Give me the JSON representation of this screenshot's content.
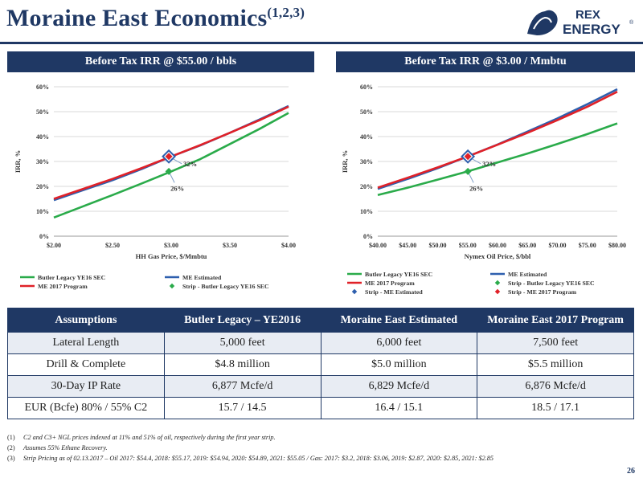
{
  "header": {
    "title": "Moraine East Economics",
    "title_sup": "(1,2,3)",
    "logo_text_1": "REX",
    "logo_text_2": "ENERGY",
    "logo_reg": "®"
  },
  "colors": {
    "navy": "#1f3864",
    "green": "#2aab4a",
    "blue": "#2e5fae",
    "red": "#e02128"
  },
  "chart_data": [
    {
      "type": "line",
      "panel_title": "Before Tax IRR @ $55.00 / bbls",
      "xlabel": "HH Gas Price, $/Mmbtu",
      "ylabel": "IRR, %",
      "x_ticks": [
        "$2.00",
        "$2.50",
        "$3.00",
        "$3.50",
        "$4.00"
      ],
      "y_ticks": [
        "0%",
        "10%",
        "20%",
        "30%",
        "40%",
        "50%",
        "60%"
      ],
      "xlim": [
        2.0,
        4.0
      ],
      "ylim": [
        0,
        60
      ],
      "grid": true,
      "legend_placement": "bottom",
      "series": [
        {
          "name": "Butler Legacy YE16 SEC",
          "color": "#2aab4a",
          "x": [
            2.0,
            2.25,
            2.5,
            2.75,
            3.0,
            3.25,
            3.5,
            3.75,
            4.0
          ],
          "y": [
            7.5,
            12.0,
            16.5,
            21.2,
            26.0,
            31.0,
            37.0,
            43.0,
            49.5
          ]
        },
        {
          "name": "ME Estimated",
          "color": "#2e5fae",
          "x": [
            2.0,
            2.25,
            2.5,
            2.75,
            3.0,
            3.25,
            3.5,
            3.75,
            4.0
          ],
          "y": [
            14.5,
            18.5,
            22.5,
            27.0,
            32.0,
            36.5,
            41.5,
            46.8,
            52.3
          ]
        },
        {
          "name": "ME 2017 Program",
          "color": "#e02128",
          "x": [
            2.0,
            2.25,
            2.5,
            2.75,
            3.0,
            3.25,
            3.5,
            3.75,
            4.0
          ],
          "y": [
            15.0,
            19.0,
            23.0,
            27.4,
            32.0,
            36.6,
            41.5,
            46.5,
            52.0
          ]
        }
      ],
      "points": [
        {
          "name": "Strip - Butler Legacy YE16 SEC",
          "x": 2.98,
          "y": 26,
          "color": "#2aab4a",
          "shape": "diamond"
        },
        {
          "name": "",
          "x": 2.98,
          "y": 32,
          "color": "#2e5fae",
          "shape": "diamond-outline"
        },
        {
          "name": "",
          "x": 2.98,
          "y": 32,
          "color": "#e02128",
          "shape": "diamond"
        }
      ],
      "annotations": [
        {
          "text": "32%",
          "x": 2.98,
          "y": 32
        },
        {
          "text": "26%",
          "x": 2.98,
          "y": 26
        }
      ],
      "legend": [
        {
          "label": "Butler Legacy YE16 SEC",
          "color": "#2aab4a",
          "kind": "line"
        },
        {
          "label": "ME Estimated",
          "color": "#2e5fae",
          "kind": "line"
        },
        {
          "label": "ME 2017 Program",
          "color": "#e02128",
          "kind": "line"
        },
        {
          "label": "Strip - Butler Legacy YE16 SEC",
          "color": "#2aab4a",
          "kind": "diamond"
        }
      ]
    },
    {
      "type": "line",
      "panel_title": "Before Tax IRR @ $3.00 / Mmbtu",
      "xlabel": "Nymex Oil Price, $/bbl",
      "ylabel": "IRR, %",
      "x_ticks": [
        "$40.00",
        "$45.00",
        "$50.00",
        "$55.00",
        "$60.00",
        "$65.00",
        "$70.00",
        "$75.00",
        "$80.00"
      ],
      "y_ticks": [
        "0%",
        "10%",
        "20%",
        "30%",
        "40%",
        "50%",
        "60%"
      ],
      "xlim": [
        40,
        80
      ],
      "ylim": [
        0,
        60
      ],
      "grid": true,
      "legend_placement": "bottom",
      "series": [
        {
          "name": "Butler Legacy YE16 SEC",
          "color": "#2aab4a",
          "x": [
            40,
            45,
            50,
            55,
            60,
            65,
            70,
            75,
            80
          ],
          "y": [
            16.5,
            19.5,
            22.7,
            26.0,
            29.6,
            33.2,
            37.0,
            41.0,
            45.3
          ]
        },
        {
          "name": "ME Estimated",
          "color": "#2e5fae",
          "x": [
            40,
            45,
            50,
            55,
            60,
            65,
            70,
            75,
            80
          ],
          "y": [
            19.0,
            23.0,
            27.3,
            32.0,
            36.8,
            42.0,
            47.3,
            53.0,
            59.0
          ]
        },
        {
          "name": "ME 2017 Program",
          "color": "#e02128",
          "x": [
            40,
            45,
            50,
            55,
            60,
            65,
            70,
            75,
            80
          ],
          "y": [
            19.5,
            23.5,
            27.6,
            32.0,
            36.7,
            41.5,
            46.6,
            52.0,
            58.0
          ]
        }
      ],
      "points": [
        {
          "name": "Strip - Butler Legacy YE16 SEC",
          "x": 55.05,
          "y": 26,
          "color": "#2aab4a",
          "shape": "diamond"
        },
        {
          "name": "Strip - ME Estimated",
          "x": 55.05,
          "y": 32,
          "color": "#2e5fae",
          "shape": "diamond-outline"
        },
        {
          "name": "Strip - ME 2017 Program",
          "x": 55.05,
          "y": 32,
          "color": "#e02128",
          "shape": "diamond"
        }
      ],
      "annotations": [
        {
          "text": "32%",
          "x": 55.05,
          "y": 32
        },
        {
          "text": "26%",
          "x": 55.05,
          "y": 26
        }
      ],
      "legend": [
        {
          "label": "Butler Legacy YE16 SEC",
          "color": "#2aab4a",
          "kind": "line"
        },
        {
          "label": "ME Estimated",
          "color": "#2e5fae",
          "kind": "line"
        },
        {
          "label": "ME 2017 Program",
          "color": "#e02128",
          "kind": "line"
        },
        {
          "label": "Strip - Butler Legacy YE16 SEC",
          "color": "#2aab4a",
          "kind": "diamond"
        },
        {
          "label": "Strip - ME Estimated",
          "color": "#2e5fae",
          "kind": "diamond"
        },
        {
          "label": "Strip - ME 2017 Program",
          "color": "#e02128",
          "kind": "diamond"
        }
      ]
    }
  ],
  "table": {
    "headers": [
      "Assumptions",
      "Butler Legacy – YE2016",
      "Moraine East Estimated",
      "Moraine East 2017 Program"
    ],
    "rows": [
      [
        "Lateral Length",
        "5,000 feet",
        "6,000 feet",
        "7,500 feet"
      ],
      [
        "Drill & Complete",
        "$4.8 million",
        "$5.0 million",
        "$5.5 million"
      ],
      [
        "30-Day IP Rate",
        "6,877 Mcfe/d",
        "6,829 Mcfe/d",
        "6,876 Mcfe/d"
      ],
      [
        "EUR (Bcfe) 80% / 55% C2",
        "15.7 / 14.5",
        "16.4 / 15.1",
        "18.5 / 17.1"
      ]
    ]
  },
  "footnotes": [
    {
      "num": "(1)",
      "text": "C2 and C3+ NGL prices indexed at 11% and 51% of oil, respectively during the first year strip."
    },
    {
      "num": "(2)",
      "text": "Assumes 55% Ethane Recovery."
    },
    {
      "num": "(3)",
      "text": "Strip Pricing as of 02.13.2017 – Oil 2017: $54.4, 2018: $55.17, 2019: $54.94, 2020: $54.89, 2021: $55.05 / Gas: 2017: $3.2, 2018: $3.06, 2019: $2.87, 2020: $2.85, 2021: $2.85"
    }
  ],
  "page_number": "26"
}
